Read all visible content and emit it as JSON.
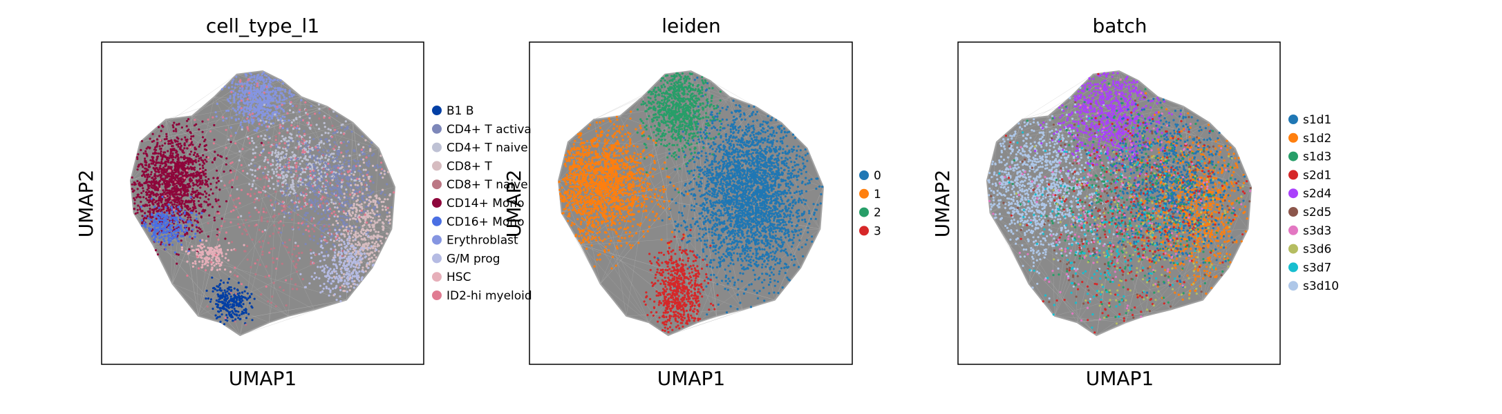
{
  "chart_data": [
    {
      "type": "scatter",
      "title": "cell_type_l1",
      "xlabel": "UMAP1",
      "ylabel": "UMAP2",
      "grid": false,
      "legend_position": "right",
      "legend": [
        {
          "label": "B1 B",
          "color": "#023fa5"
        },
        {
          "label": "CD4+ T activa",
          "color": "#7d87b9"
        },
        {
          "label": "CD4+ T naive",
          "color": "#bec1d4"
        },
        {
          "label": "CD8+ T",
          "color": "#d6bcc0"
        },
        {
          "label": "CD8+ T naive",
          "color": "#bb7784"
        },
        {
          "label": "CD14+ Mono",
          "color": "#8e063b"
        },
        {
          "label": "CD16+ Mono",
          "color": "#4a6fe3"
        },
        {
          "label": "Erythroblast",
          "color": "#8595e1"
        },
        {
          "label": "G/M prog",
          "color": "#b5bbe3"
        },
        {
          "label": "HSC",
          "color": "#e6afb9"
        },
        {
          "label": "ID2-hi myeloid",
          "color": "#e07b91"
        }
      ]
    },
    {
      "type": "scatter",
      "title": "leiden",
      "xlabel": "UMAP1",
      "ylabel": "UMAP2",
      "grid": false,
      "legend_position": "right",
      "legend": [
        {
          "label": "0",
          "color": "#1f77b4"
        },
        {
          "label": "1",
          "color": "#ff7f0e"
        },
        {
          "label": "2",
          "color": "#279e68"
        },
        {
          "label": "3",
          "color": "#d62728"
        }
      ]
    },
    {
      "type": "scatter",
      "title": "batch",
      "xlabel": "UMAP1",
      "ylabel": "UMAP2",
      "grid": false,
      "legend_position": "right",
      "legend": [
        {
          "label": "s1d1",
          "color": "#1f77b4"
        },
        {
          "label": "s1d2",
          "color": "#ff7f0e"
        },
        {
          "label": "s1d3",
          "color": "#279e68"
        },
        {
          "label": "s2d1",
          "color": "#d62728"
        },
        {
          "label": "s2d4",
          "color": "#aa40fc"
        },
        {
          "label": "s2d5",
          "color": "#8c564b"
        },
        {
          "label": "s3d3",
          "color": "#e377c2"
        },
        {
          "label": "s3d6",
          "color": "#b5bd61"
        },
        {
          "label": "s3d7",
          "color": "#17becf"
        },
        {
          "label": "s3d10",
          "color": "#aec7e8"
        }
      ]
    }
  ]
}
